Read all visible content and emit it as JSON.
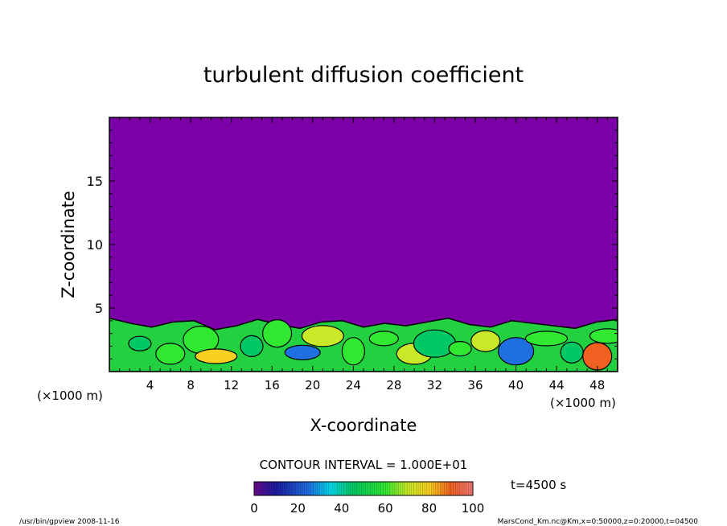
{
  "chart_data": {
    "type": "heatmap",
    "title": "turbulent diffusion coefficient",
    "xlabel": "X-coordinate",
    "ylabel": "Z-coordinate",
    "x_unit": "(×1000 m)",
    "y_unit": "(×1000 m)",
    "xlim": [
      0,
      50
    ],
    "ylim": [
      0,
      20
    ],
    "x_ticks": [
      4,
      8,
      12,
      16,
      20,
      24,
      28,
      32,
      36,
      40,
      44,
      48
    ],
    "y_ticks": [
      5,
      10,
      15
    ],
    "contour_interval": "CONTOUR INTERVAL = 1.000E+01",
    "colorbar": {
      "min": 0,
      "max": 100,
      "ticks": [
        0,
        20,
        40,
        60,
        80,
        100
      ]
    },
    "time_label": "t=4500 s",
    "background_value": 0,
    "turbulent_layer_top_z": [
      4.2,
      3.8,
      3.5,
      3.9,
      4.0,
      3.3,
      3.6,
      4.1,
      3.7,
      3.4,
      3.9,
      4.0,
      3.5,
      3.8,
      3.6,
      3.9,
      4.2,
      3.7,
      3.5,
      4.0,
      3.8,
      3.6,
      3.4,
      3.9,
      4.1
    ],
    "patches": [
      {
        "x": 3,
        "z": 2.2,
        "value": 45
      },
      {
        "x": 6,
        "z": 1.4,
        "value": 60
      },
      {
        "x": 9,
        "z": 2.5,
        "value": 55
      },
      {
        "x": 10.5,
        "z": 1.2,
        "value": 75
      },
      {
        "x": 14,
        "z": 2.0,
        "value": 40
      },
      {
        "x": 16.5,
        "z": 3.0,
        "value": 50
      },
      {
        "x": 19,
        "z": 1.5,
        "value": 20
      },
      {
        "x": 21,
        "z": 2.8,
        "value": 65
      },
      {
        "x": 24,
        "z": 1.6,
        "value": 55
      },
      {
        "x": 27,
        "z": 2.6,
        "value": 60
      },
      {
        "x": 30,
        "z": 1.4,
        "value": 70
      },
      {
        "x": 32,
        "z": 2.2,
        "value": 40
      },
      {
        "x": 34.5,
        "z": 1.8,
        "value": 55
      },
      {
        "x": 37,
        "z": 2.4,
        "value": 62
      },
      {
        "x": 40,
        "z": 1.6,
        "value": 15
      },
      {
        "x": 43,
        "z": 2.6,
        "value": 58
      },
      {
        "x": 45.5,
        "z": 1.5,
        "value": 40
      },
      {
        "x": 48,
        "z": 1.2,
        "value": 85
      },
      {
        "x": 49,
        "z": 2.8,
        "value": 50
      }
    ]
  },
  "footer": {
    "left": "/usr/bin/gpview   2008-11-16",
    "right": "MarsCond_Km.nc@Km,x=0:50000,z=0:20000,t=04500"
  }
}
